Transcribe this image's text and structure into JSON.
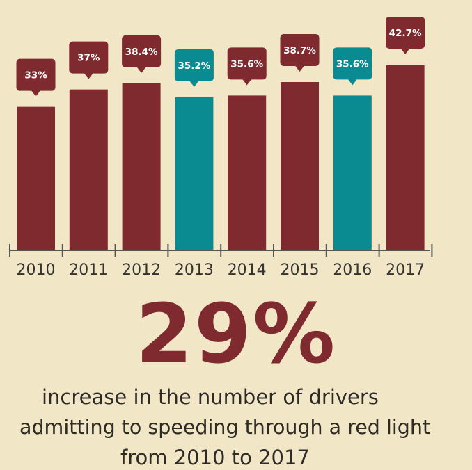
{
  "chart_data": {
    "type": "bar",
    "categories": [
      "2010",
      "2011",
      "2012",
      "2013",
      "2014",
      "2015",
      "2016",
      "2017"
    ],
    "values": [
      33,
      37,
      38.4,
      35.2,
      35.6,
      38.7,
      35.6,
      42.7
    ],
    "value_labels": [
      "33%",
      "37%",
      "38.4%",
      "35.2%",
      "35.6%",
      "38.7%",
      "35.6%",
      "42.7%"
    ],
    "highlight": [
      false,
      false,
      false,
      true,
      false,
      false,
      true,
      false
    ],
    "title": "",
    "xlabel": "",
    "ylabel": "",
    "ylim": [
      0,
      50
    ],
    "grid": false,
    "legend": "none"
  },
  "headline": {
    "value": "29%"
  },
  "caption": {
    "line1": "increase in the number of drivers",
    "line2": "admitting to speeding through a red light",
    "line3": "from 2010 to 2017"
  },
  "colors": {
    "background": "#f1e6c6",
    "bar": "#7f2a2f",
    "bar_highlight": "#0a8a91",
    "axis": "#555555",
    "tick_label": "#333333",
    "label_text": "#ffffff",
    "headline": "#7f2a2f",
    "caption": "#2e2b27"
  }
}
